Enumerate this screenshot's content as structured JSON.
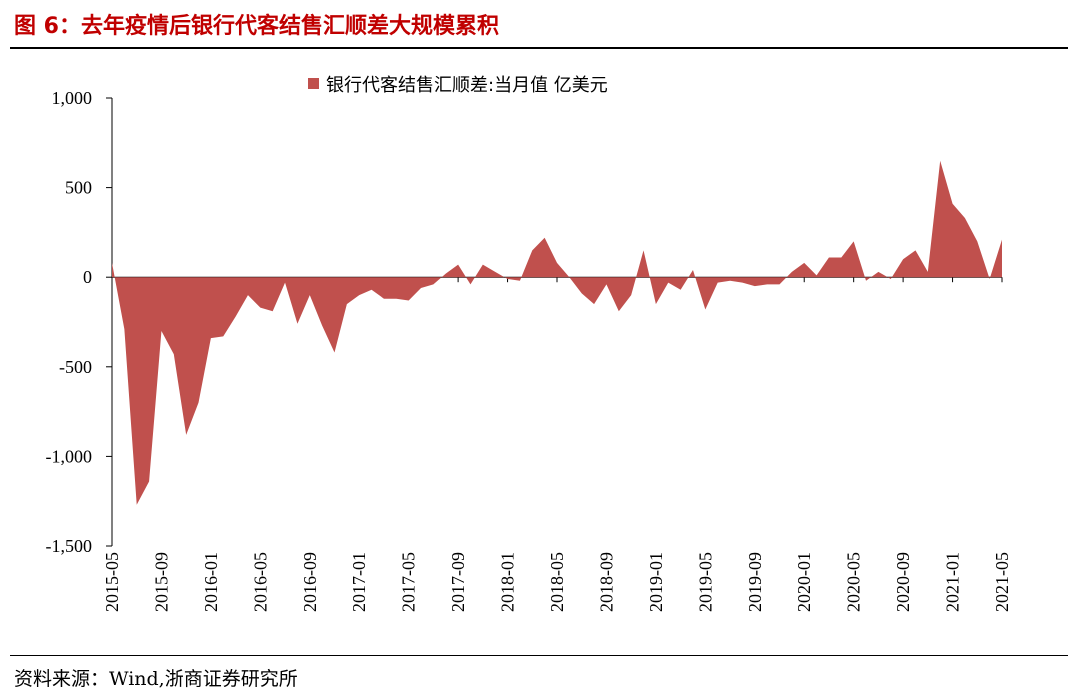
{
  "header": {
    "title": "图 6：去年疫情后银行代客结售汇顺差大规模累积"
  },
  "footer": {
    "source": "资料来源：Wind,浙商证券研究所"
  },
  "colors": {
    "area": "#c0504d",
    "title": "#c00000"
  },
  "chart_data": {
    "type": "area",
    "title": "",
    "xlabel": "",
    "ylabel": "",
    "ylim": [
      -1500,
      1000
    ],
    "yticks": [
      1000,
      500,
      0,
      -500,
      -1000,
      -1500
    ],
    "ytick_labels": [
      "1,000",
      "500",
      "0",
      "-500",
      "-1,000",
      "-1,500"
    ],
    "xtick_labels": [
      "2015-05",
      "2015-09",
      "2016-01",
      "2016-05",
      "2016-09",
      "2017-01",
      "2017-05",
      "2017-09",
      "2018-01",
      "2018-05",
      "2018-09",
      "2019-01",
      "2019-05",
      "2019-09",
      "2020-01",
      "2020-05",
      "2020-09",
      "2021-01",
      "2021-05"
    ],
    "series": [
      {
        "name": "银行代客结售汇顺差:当月值 亿美元",
        "x": [
          "2015-05",
          "2015-06",
          "2015-07",
          "2015-08",
          "2015-09",
          "2015-10",
          "2015-11",
          "2015-12",
          "2016-01",
          "2016-02",
          "2016-03",
          "2016-04",
          "2016-05",
          "2016-06",
          "2016-07",
          "2016-08",
          "2016-09",
          "2016-10",
          "2016-11",
          "2016-12",
          "2017-01",
          "2017-02",
          "2017-03",
          "2017-04",
          "2017-05",
          "2017-06",
          "2017-07",
          "2017-08",
          "2017-09",
          "2017-10",
          "2017-11",
          "2017-12",
          "2018-01",
          "2018-02",
          "2018-03",
          "2018-04",
          "2018-05",
          "2018-06",
          "2018-07",
          "2018-08",
          "2018-09",
          "2018-10",
          "2018-11",
          "2018-12",
          "2019-01",
          "2019-02",
          "2019-03",
          "2019-04",
          "2019-05",
          "2019-06",
          "2019-07",
          "2019-08",
          "2019-09",
          "2019-10",
          "2019-11",
          "2019-12",
          "2020-01",
          "2020-02",
          "2020-03",
          "2020-04",
          "2020-05",
          "2020-06",
          "2020-07",
          "2020-08",
          "2020-09",
          "2020-10",
          "2020-11",
          "2020-12",
          "2021-01",
          "2021-02",
          "2021-03",
          "2021-04",
          "2021-05"
        ],
        "values": [
          80,
          -290,
          -1270,
          -1140,
          -300,
          -430,
          -880,
          -700,
          -340,
          -330,
          -220,
          -100,
          -170,
          -190,
          -30,
          -260,
          -100,
          -270,
          -420,
          -150,
          -100,
          -70,
          -120,
          -120,
          -130,
          -60,
          -40,
          20,
          70,
          -40,
          70,
          30,
          -10,
          -20,
          150,
          220,
          80,
          0,
          -90,
          -150,
          -40,
          -190,
          -100,
          150,
          -150,
          -30,
          -70,
          40,
          -180,
          -30,
          -20,
          -30,
          -50,
          -40,
          -40,
          30,
          80,
          10,
          110,
          110,
          200,
          -20,
          30,
          -10,
          100,
          150,
          30,
          650,
          410,
          330,
          200,
          -10,
          210
        ]
      }
    ]
  }
}
